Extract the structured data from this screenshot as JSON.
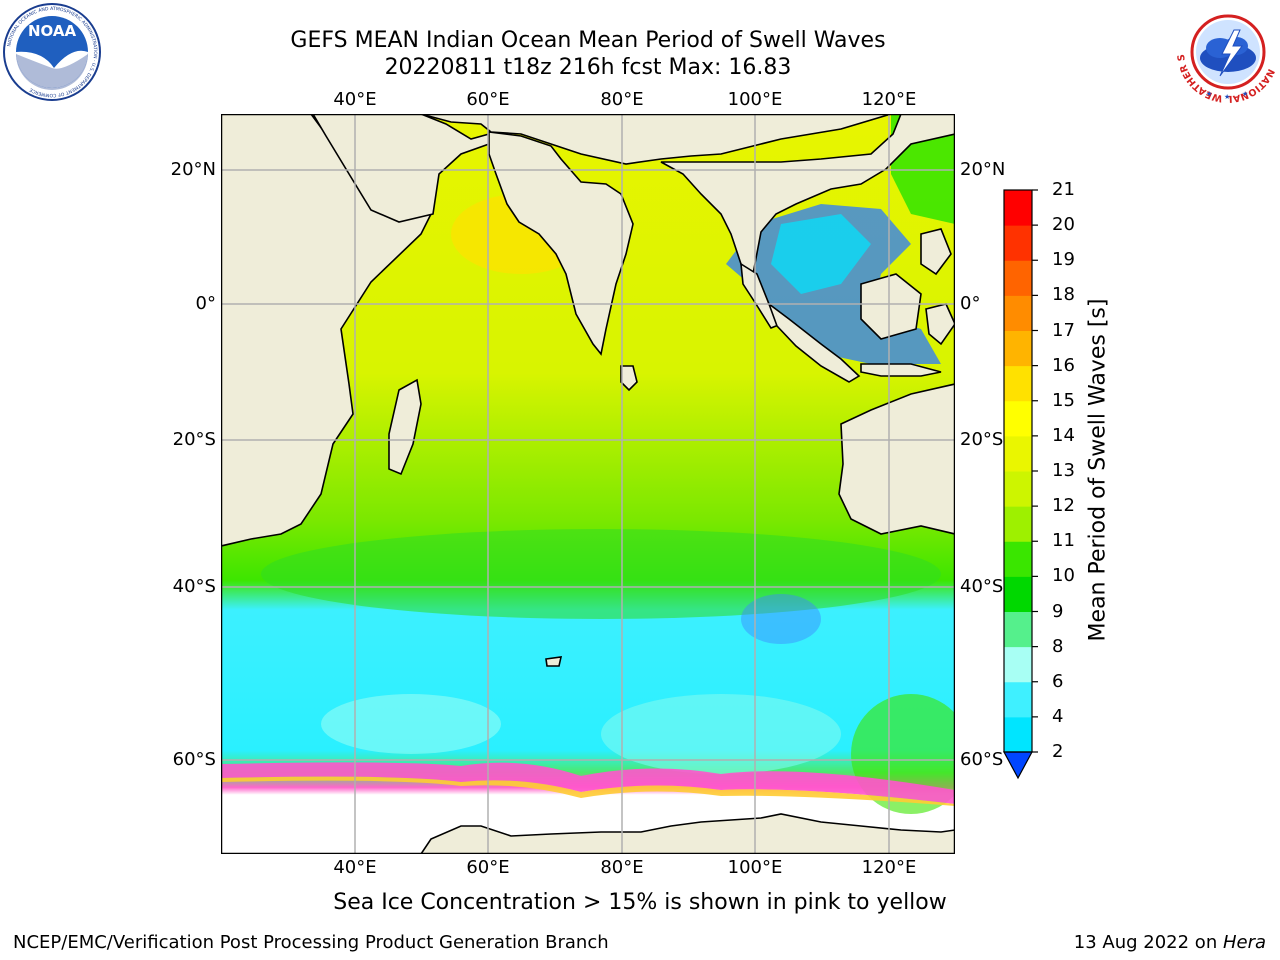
{
  "title": {
    "line1": "GEFS MEAN Indian Ocean Mean Period of Swell Waves",
    "line2": "20220811 t18z 216h fcst   Max: 16.83"
  },
  "map": {
    "lon_labels": [
      "40°E",
      "60°E",
      "80°E",
      "100°E",
      "120°E"
    ],
    "lat_labels": [
      "20°N",
      "0°",
      "20°S",
      "40°S",
      "60°S"
    ],
    "extent": {
      "lon": [
        20,
        130
      ],
      "lat": [
        -70,
        28
      ]
    },
    "land_color": "#efedd9",
    "ice_label_color": "#ff55cc"
  },
  "colorbar": {
    "label": "Mean Period of Swell Waves [s]",
    "ticks": [
      "2",
      "4",
      "6",
      "8",
      "9",
      "10",
      "11",
      "12",
      "13",
      "14",
      "15",
      "16",
      "17",
      "18",
      "19",
      "20",
      "21"
    ],
    "colors": [
      "#0046ff",
      "#00e5ff",
      "#3ff0ff",
      "#a8fff4",
      "#55f08c",
      "#00d800",
      "#3ae600",
      "#9ef000",
      "#cdf500",
      "#eaf600",
      "#ffff00",
      "#ffe100",
      "#ffb400",
      "#ff8c00",
      "#ff6400",
      "#ff3200",
      "#ff0000"
    ]
  },
  "subtitle": "Sea Ice Concentration > 15% is shown in pink to yellow",
  "footer": {
    "left": "NCEP/EMC/Verification Post Processing Product Generation Branch",
    "right_date": "13 Aug 2022 on ",
    "right_host": "Hera"
  },
  "logos": {
    "noaa_text": "NOAA",
    "noaa_ring": "NATIONAL OCEANIC AND ATMOSPHERIC ADMINISTRATION · U.S. DEPARTMENT OF COMMERCE",
    "nws_ring": "NATIONAL WEATHER SERVICE"
  }
}
